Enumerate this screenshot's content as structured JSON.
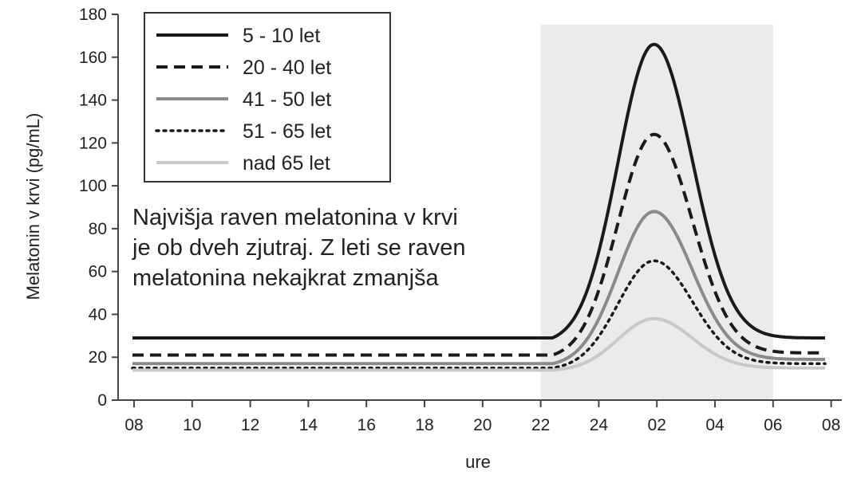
{
  "chart_data": {
    "type": "line",
    "title": "",
    "xlabel": "ure",
    "ylabel": "Melatonin v krvi (pg/mL)",
    "ylim": [
      0,
      180
    ],
    "y_ticks": [
      0,
      20,
      40,
      60,
      80,
      100,
      120,
      140,
      160,
      180
    ],
    "x_ticks": [
      "08",
      "10",
      "12",
      "14",
      "16",
      "18",
      "20",
      "22",
      "24",
      "02",
      "04",
      "06",
      "08"
    ],
    "shaded_region": {
      "from": "22",
      "to": "06"
    },
    "legend_position": "top-left",
    "annotation": [
      "Najvišja raven melatonina v krvi",
      "je ob dveh zjutraj. Z leti se raven",
      "melatonina nekajkrat zmanjša"
    ],
    "series": [
      {
        "name": "5 - 10 let",
        "style": "solid",
        "color": "#1a1a1a",
        "baseline": 29,
        "peak": 166,
        "end": 29
      },
      {
        "name": "20 - 40 let",
        "style": "dashed",
        "color": "#1a1a1a",
        "baseline": 21,
        "peak": 124,
        "end": 22
      },
      {
        "name": "41 - 50 let",
        "style": "solid",
        "color": "#8a8a8a",
        "baseline": 17,
        "peak": 88,
        "end": 19
      },
      {
        "name": "51 - 65 let",
        "style": "dotted",
        "color": "#1a1a1a",
        "baseline": 15,
        "peak": 65,
        "end": 17
      },
      {
        "name": "nad 65 let",
        "style": "solid",
        "color": "#c8c8c8",
        "baseline": 14,
        "peak": 38,
        "end": 15
      }
    ]
  }
}
